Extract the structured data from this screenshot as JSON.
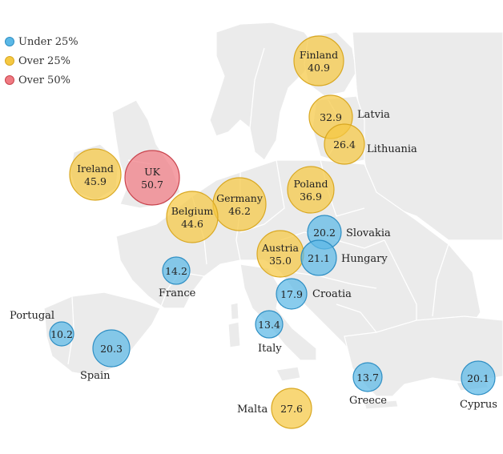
{
  "legend": [
    {
      "label": "Under 25%",
      "color": "#5bb8e6",
      "stroke": "#2f8fc4"
    },
    {
      "label": "Over 25%",
      "color": "#f5c842",
      "stroke": "#d9a822"
    },
    {
      "label": "Over 50%",
      "color": "#f07a82",
      "stroke": "#c9444d"
    }
  ],
  "countries": [
    {
      "id": "finland",
      "name": "Finland",
      "value": "40.9",
      "cat": 1
    },
    {
      "id": "latvia",
      "name": "Latvia",
      "value": "32.9",
      "cat": 1
    },
    {
      "id": "lithuania",
      "name": "Lithuania",
      "value": "26.4",
      "cat": 1
    },
    {
      "id": "ireland",
      "name": "Ireland",
      "value": "45.9",
      "cat": 1
    },
    {
      "id": "uk",
      "name": "UK",
      "value": "50.7",
      "cat": 2
    },
    {
      "id": "germany",
      "name": "Germany",
      "value": "46.2",
      "cat": 1
    },
    {
      "id": "belgium",
      "name": "Belgium",
      "value": "44.6",
      "cat": 1
    },
    {
      "id": "poland",
      "name": "Poland",
      "value": "36.9",
      "cat": 1
    },
    {
      "id": "slovakia",
      "name": "Slovakia",
      "value": "20.2",
      "cat": 0
    },
    {
      "id": "austria",
      "name": "Austria",
      "value": "35.0",
      "cat": 1
    },
    {
      "id": "hungary",
      "name": "Hungary",
      "value": "21.1",
      "cat": 0
    },
    {
      "id": "france",
      "name": "France",
      "value": "14.2",
      "cat": 0
    },
    {
      "id": "croatia",
      "name": "Croatia",
      "value": "17.9",
      "cat": 0
    },
    {
      "id": "portugal",
      "name": "Portugal",
      "value": "10.2",
      "cat": 0
    },
    {
      "id": "italy",
      "name": "Italy",
      "value": "13.4",
      "cat": 0
    },
    {
      "id": "spain",
      "name": "Spain",
      "value": "20.3",
      "cat": 0
    },
    {
      "id": "greece",
      "name": "Greece",
      "value": "13.7",
      "cat": 0
    },
    {
      "id": "cyprus",
      "name": "Cyprus",
      "value": "20.1",
      "cat": 0
    },
    {
      "id": "malta",
      "name": "Malta",
      "value": "27.6",
      "cat": 1
    }
  ]
}
